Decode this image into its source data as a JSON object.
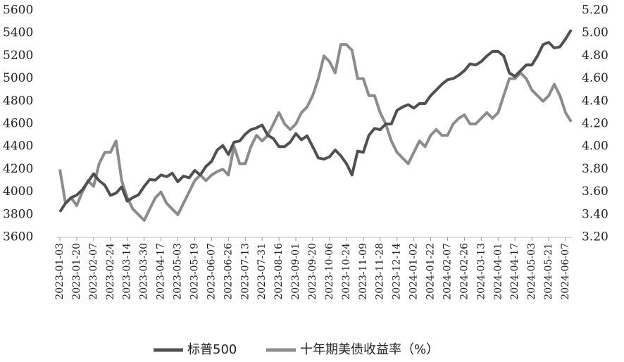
{
  "chart_data": {
    "type": "line",
    "categories": [
      "2023-01-03",
      null,
      null,
      "2023-01-20",
      null,
      null,
      "2023-02-07",
      null,
      null,
      "2023-02-24",
      null,
      null,
      "2023-03-14",
      null,
      null,
      "2023-03-30",
      null,
      null,
      "2023-04-17",
      null,
      null,
      "2023-05-03",
      null,
      null,
      "2023-05-19",
      null,
      null,
      "2023-06-07",
      null,
      null,
      "2023-06-26",
      null,
      null,
      "2023-07-13",
      null,
      null,
      "2023-07-31",
      null,
      null,
      "2023-08-16",
      null,
      null,
      "2023-09-01",
      null,
      null,
      "2023-09-20",
      null,
      null,
      "2023-10-06",
      null,
      null,
      "2023-10-24",
      null,
      null,
      "2023-11-09",
      null,
      null,
      "2023-11-28",
      null,
      null,
      "2023-12-14",
      null,
      null,
      "2024-01-02",
      null,
      null,
      "2024-01-22",
      null,
      null,
      "2024-02-07",
      null,
      null,
      "2024-02-26",
      null,
      null,
      "2024-03-13",
      null,
      null,
      "2024-04-01",
      null,
      null,
      "2024-04-17",
      null,
      null,
      "2024-05-03",
      null,
      null,
      "2024-05-21",
      null,
      null,
      "2024-06-07",
      null
    ],
    "series": [
      {
        "name": "标普500",
        "color": "#505050",
        "values": [
          3825,
          3900,
          3950,
          3972,
          4020,
          4090,
          4160,
          4100,
          4060,
          3970,
          3990,
          4045,
          3920,
          3950,
          3975,
          4050,
          4110,
          4105,
          4150,
          4135,
          4165,
          4090,
          4140,
          4125,
          4190,
          4150,
          4225,
          4270,
          4370,
          4410,
          4330,
          4440,
          4450,
          4510,
          4550,
          4565,
          4590,
          4500,
          4470,
          4400,
          4400,
          4440,
          4515,
          4460,
          4495,
          4400,
          4300,
          4290,
          4310,
          4370,
          4320,
          4250,
          4150,
          4360,
          4350,
          4500,
          4560,
          4550,
          4600,
          4600,
          4720,
          4750,
          4770,
          4740,
          4780,
          4780,
          4850,
          4900,
          4950,
          4990,
          5000,
          5030,
          5070,
          5130,
          5120,
          5150,
          5200,
          5240,
          5240,
          5200,
          5050,
          5020,
          5070,
          5120,
          5120,
          5200,
          5300,
          5320,
          5270,
          5280,
          5350,
          5430
        ]
      },
      {
        "name": "十年期美债收益率（%）",
        "color": "#8c8c8c",
        "axis": "y2",
        "values": [
          3.8,
          3.5,
          3.55,
          3.48,
          3.6,
          3.7,
          3.65,
          3.85,
          3.95,
          3.95,
          4.05,
          3.7,
          3.55,
          3.45,
          3.4,
          3.35,
          3.45,
          3.55,
          3.6,
          3.5,
          3.45,
          3.4,
          3.5,
          3.6,
          3.7,
          3.75,
          3.7,
          3.75,
          3.78,
          3.8,
          3.75,
          4.0,
          3.85,
          3.85,
          4.0,
          4.1,
          4.05,
          4.1,
          4.2,
          4.3,
          4.2,
          4.15,
          4.2,
          4.3,
          4.35,
          4.45,
          4.6,
          4.8,
          4.75,
          4.65,
          4.9,
          4.9,
          4.85,
          4.6,
          4.6,
          4.45,
          4.45,
          4.3,
          4.2,
          4.05,
          3.95,
          3.9,
          3.85,
          3.95,
          4.05,
          4.0,
          4.1,
          4.15,
          4.1,
          4.1,
          4.2,
          4.25,
          4.28,
          4.2,
          4.2,
          4.25,
          4.3,
          4.25,
          4.3,
          4.45,
          4.6,
          4.6,
          4.65,
          4.6,
          4.5,
          4.45,
          4.4,
          4.45,
          4.55,
          4.45,
          4.3,
          4.22
        ]
      }
    ],
    "ylim": [
      3600,
      5600
    ],
    "yticks": [
      3600,
      3800,
      4000,
      4200,
      4400,
      4600,
      4800,
      5000,
      5200,
      5400,
      5600
    ],
    "y2lim": [
      3.2,
      5.2
    ],
    "y2ticks": [
      {
        "value": 3.2,
        "label": "3.20"
      },
      {
        "value": 3.4,
        "label": "3.40"
      },
      {
        "value": 3.6,
        "label": "3.60"
      },
      {
        "value": 3.8,
        "label": "3.80"
      },
      {
        "value": 4.0,
        "label": "4.00"
      },
      {
        "value": 4.2,
        "label": "4.20"
      },
      {
        "value": 4.4,
        "label": "4.40"
      },
      {
        "value": 4.6,
        "label": "4.60"
      },
      {
        "value": 4.8,
        "label": "4.80"
      },
      {
        "value": 5.0,
        "label": "5.00"
      },
      {
        "value": 5.2,
        "label": "5.20"
      }
    ],
    "legend": "bottom"
  }
}
